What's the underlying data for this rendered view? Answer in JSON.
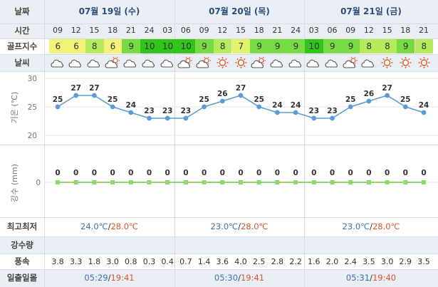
{
  "labels": {
    "date": "날짜",
    "time": "시간",
    "golf_index": "골프지수",
    "weather": "날씨",
    "temp_axis": "기온 (℃)",
    "rain_axis": "강수 (mm)",
    "minmax": "최고최저",
    "precip": "강수량",
    "wind": "풍속",
    "sun": "일출일몰"
  },
  "days": [
    {
      "label": "07월 19일 (수)",
      "low": "24.0℃",
      "high": "28.0℃",
      "sunrise": "05:29",
      "sunset": "19:41"
    },
    {
      "label": "07월 20일 (목)",
      "low": "23.0℃",
      "high": "28.0℃",
      "sunrise": "05:30",
      "sunset": "19:41"
    },
    {
      "label": "07월 21일 (금)",
      "low": "23.0℃",
      "high": "28.0℃",
      "sunrise": "05:31",
      "sunset": "19:40"
    }
  ],
  "separators": {
    "slash": "/"
  },
  "hours": [
    "09",
    "12",
    "15",
    "18",
    "21",
    "24",
    "03",
    "06",
    "09",
    "12",
    "15",
    "18",
    "21",
    "24",
    "03",
    "06",
    "09",
    "12",
    "15",
    "18",
    "21"
  ],
  "golf_index": [
    "6",
    "6",
    "8",
    "6",
    "9",
    "10",
    "10",
    "10",
    "9",
    "8",
    "7",
    "9",
    "9",
    "9",
    "10",
    "9",
    "9",
    "8",
    "8",
    "9",
    "8"
  ],
  "golf_colors": {
    "6": "#f3f37a",
    "7": "#e2f26a",
    "8": "#b5eb5c",
    "9": "#77db45",
    "10": "#33c41c"
  },
  "weather_icons": [
    "cloud-icon",
    "cloud-icon",
    "cloud-icon",
    "partly-sunny-icon",
    "cloud-icon",
    "cloud-icon",
    "cloud-icon",
    "partly-sunny-icon",
    "partly-sunny-icon",
    "sun-icon",
    "sun-icon",
    "partly-sunny-icon",
    "cloud-icon",
    "cloud-icon",
    "cloud-icon",
    "cloud-icon",
    "partly-sunny-icon",
    "cloud-icon",
    "sun-icon",
    "sun-icon",
    "sun-icon"
  ],
  "wind": [
    "3.8",
    "3.3",
    "1.8",
    "3.0",
    "0.8",
    "0.3",
    "0.4",
    "0.7",
    "1.4",
    "3.6",
    "4.0",
    "2.5",
    "2.8",
    "2.2",
    "1.6",
    "2.0",
    "2.4",
    "3.5",
    "3.0",
    "2.9",
    "3.5"
  ],
  "chart_data": [
    {
      "type": "line",
      "ylabel": "기온 (℃)",
      "x": [
        "09",
        "12",
        "15",
        "18",
        "21",
        "24",
        "03",
        "06",
        "09",
        "12",
        "15",
        "18",
        "21",
        "24",
        "03",
        "06",
        "09",
        "12",
        "15",
        "18",
        "21"
      ],
      "values": [
        25,
        27,
        27,
        25,
        24,
        23,
        23,
        23,
        25,
        26,
        27,
        25,
        24,
        24,
        23,
        23,
        25,
        26,
        27,
        25,
        24
      ],
      "yticks": [
        20,
        25,
        30
      ],
      "ylim": [
        20,
        30
      ],
      "color": "#5b9bd5"
    },
    {
      "type": "line",
      "ylabel": "강수 (mm)",
      "x": [
        "09",
        "12",
        "15",
        "18",
        "21",
        "24",
        "03",
        "06",
        "09",
        "12",
        "15",
        "18",
        "21",
        "24",
        "03",
        "06",
        "09",
        "12",
        "15",
        "18",
        "21"
      ],
      "values": [
        0,
        0,
        0,
        0,
        0,
        0,
        0,
        0,
        0,
        0,
        0,
        0,
        0,
        0,
        0,
        0,
        0,
        0,
        0,
        0,
        0
      ],
      "yticks": [
        0
      ],
      "color": "#8fd66b"
    }
  ]
}
